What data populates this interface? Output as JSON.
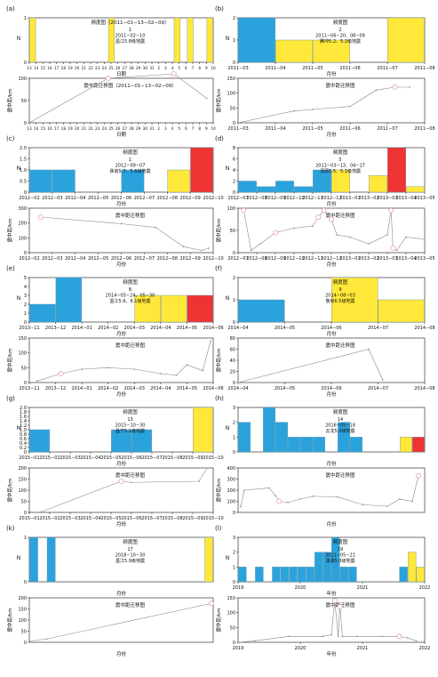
{
  "chart_data": [
    {
      "id": "a",
      "panel_label": "(a)",
      "type": "bar",
      "title": "频度图（2011−01−13−02−09）",
      "annotation": [
        "1",
        "2011−02−10",
        "盈江5.8级地震"
      ],
      "xlabel": "日期",
      "ylabel": "N",
      "categories": [
        "13",
        "14",
        "15",
        "16",
        "17",
        "18",
        "19",
        "20",
        "21",
        "22",
        "23",
        "24",
        "25",
        "26",
        "27",
        "28",
        "29",
        "30",
        "31",
        "2",
        "3",
        "4",
        "5",
        "6",
        "7",
        "8",
        "9",
        "10"
      ],
      "bar_values": [
        1,
        0,
        0,
        0,
        0,
        0,
        0,
        0,
        0,
        0,
        0,
        0,
        1,
        0,
        0,
        0,
        0,
        0,
        0,
        0,
        0,
        0,
        1,
        0,
        1,
        0,
        0,
        1
      ],
      "bar_colors": [
        "#ffe83a",
        "#ffe83a",
        "#ffe83a",
        "#ffe83a",
        "#ffe83a",
        "#ffe83a",
        "#ffe83a",
        "#ffe83a",
        "#ffe83a",
        "#ffe83a",
        "#ffe83a",
        "#ffe83a",
        "#ffe83a",
        "#ffe83a",
        "#ffe83a",
        "#ffe83a",
        "#ffe83a",
        "#ffe83a",
        "#ffe83a",
        "#ffe83a",
        "#ffe83a",
        "#ffe83a",
        "#ffe83a",
        "#ffe83a",
        "#ffe83a",
        "#ffe83a",
        "#ffe83a",
        "#ffe83a"
      ],
      "ylim": [
        0,
        1
      ],
      "yticks": [
        "0",
        "1"
      ],
      "mig_title": "震中距迁移图（2011−01−13−02−09）",
      "mig_ylabel": "震中距/km",
      "mig_ylim": [
        0,
        100
      ],
      "mig_yticks": [
        "0",
        "50",
        "100"
      ],
      "mig_points": [
        [
          0,
          0
        ],
        [
          12,
          100
        ],
        [
          22,
          110
        ],
        [
          27,
          55
        ]
      ],
      "mig_circles": [
        12,
        22
      ]
    },
    {
      "id": "b",
      "panel_label": "(b)",
      "type": "bar",
      "title": "频度图",
      "annotation": [
        "2",
        "2011−06−20、08−09",
        "腾冲5.2、5.2级地震"
      ],
      "xlabel": "月份",
      "ylabel": "N",
      "categories": [
        "2011−03",
        "2011−04",
        "2011−05",
        "2011−06",
        "2011−07",
        "2011−08"
      ],
      "bar_values": [
        2,
        1,
        1,
        0,
        2
      ],
      "bar_colors": [
        "#2aa3dd",
        "#ffe83a",
        "#ffe83a",
        "#ffe83a",
        "#ffe83a"
      ],
      "ylim": [
        0,
        2
      ],
      "yticks": [
        "0",
        "1",
        "2"
      ],
      "mig_title": "震中距迁移图",
      "mig_ylabel": "震中距/km",
      "mig_ylim": [
        0,
        150
      ],
      "mig_yticks": [
        "0",
        "50",
        "100",
        "150"
      ],
      "mig_points": [
        [
          0,
          0
        ],
        [
          1.5,
          40
        ],
        [
          2,
          45
        ],
        [
          3,
          55
        ],
        [
          3.7,
          110
        ],
        [
          4.2,
          120
        ],
        [
          4.6,
          120
        ]
      ],
      "mig_circles": [
        4.2
      ]
    },
    {
      "id": "c",
      "panel_label": "(c)",
      "type": "bar",
      "title": "频度图",
      "annotation": [
        "1",
        "2012−09−07",
        "彝良5.7、5.6级地震"
      ],
      "xlabel": "月份",
      "ylabel": "N",
      "categories": [
        "2012−02",
        "2012−03",
        "2012−04",
        "2012−05",
        "2012−06",
        "2012−07",
        "2012−08",
        "2012−09",
        "2012−10"
      ],
      "bar_values": [
        1,
        1,
        0,
        0,
        1,
        0,
        1,
        2
      ],
      "bar_colors": [
        "#2aa3dd",
        "#2aa3dd",
        "#2aa3dd",
        "#2aa3dd",
        "#2aa3dd",
        "#ffe83a",
        "#ffe83a",
        "#ee3333"
      ],
      "ylim": [
        0,
        2
      ],
      "yticks": [
        "0",
        "0.5",
        "1.0",
        "1.5",
        "2.0"
      ],
      "mig_title": "震中距迁移图",
      "mig_ylabel": "震中距/km",
      "mig_ylim": [
        0,
        300
      ],
      "mig_yticks": [
        "0",
        "100",
        "200",
        "300"
      ],
      "mig_points": [
        [
          0.5,
          240
        ],
        [
          4,
          195
        ],
        [
          5.5,
          170
        ],
        [
          6.7,
          40
        ],
        [
          7.5,
          15
        ],
        [
          7.8,
          30
        ]
      ],
      "mig_circles": [
        0.5
      ]
    },
    {
      "id": "d",
      "panel_label": "(d)",
      "type": "bar",
      "title": "频度图",
      "annotation": [
        "5",
        "2013−03−13、04−17",
        "洱源5.5、5.1级地震"
      ],
      "xlabel": "月份",
      "ylabel": "N",
      "categories": [
        "2012−07",
        "2012−08",
        "2012−09",
        "2012−10",
        "2012−11",
        "2012−12",
        "2013−01",
        "2013−02",
        "2013−03",
        "2013−04",
        "2013−05"
      ],
      "bar_values": [
        2,
        1,
        2,
        1,
        4,
        4,
        0,
        3,
        8,
        1
      ],
      "bar_colors": [
        "#2aa3dd",
        "#2aa3dd",
        "#2aa3dd",
        "#2aa3dd",
        "#2aa3dd",
        "#ffe83a",
        "#ffe83a",
        "#ffe83a",
        "#ee3333",
        "#ffe83a"
      ],
      "ylim": [
        0,
        8
      ],
      "yticks": [
        "0",
        "2",
        "4",
        "6",
        "8"
      ],
      "mig_title": "震中距迁移图",
      "mig_ylabel": "震中距/km",
      "mig_ylim": [
        0,
        100
      ],
      "mig_yticks": [
        "0",
        "50",
        "100"
      ],
      "mig_points": [
        [
          0.3,
          95
        ],
        [
          0.7,
          5
        ],
        [
          1.2,
          20
        ],
        [
          2,
          45
        ],
        [
          3,
          55
        ],
        [
          4,
          60
        ],
        [
          4.3,
          80
        ],
        [
          4.6,
          95
        ],
        [
          5,
          75
        ],
        [
          5.3,
          40
        ],
        [
          6,
          35
        ],
        [
          7,
          20
        ],
        [
          8,
          40
        ],
        [
          8.2,
          95
        ],
        [
          8.3,
          10
        ],
        [
          8.5,
          5
        ],
        [
          9,
          35
        ],
        [
          10,
          30
        ]
      ],
      "mig_circles": [
        0.3,
        2,
        4.3,
        4.6,
        5,
        8.2,
        8.3
      ]
    },
    {
      "id": "e",
      "panel_label": "(e)",
      "type": "bar",
      "title": "频度图",
      "annotation": [
        "8",
        "2014−05−24、05−30",
        "盈江5.6、6.1级地震"
      ],
      "xlabel": "月份",
      "ylabel": "N",
      "categories": [
        "2013−11",
        "2013−12",
        "2014−01",
        "2014−02",
        "2014−03",
        "2014−04",
        "2014−05",
        "2014−06"
      ],
      "bar_values": [
        2,
        5,
        0,
        0,
        3,
        3,
        3
      ],
      "bar_colors": [
        "#2aa3dd",
        "#2aa3dd",
        "#2aa3dd",
        "#2aa3dd",
        "#ffe83a",
        "#ffe83a",
        "#ee3333"
      ],
      "ylim": [
        0,
        5
      ],
      "yticks": [
        "0",
        "1",
        "2",
        "3",
        "4",
        "5"
      ],
      "mig_title": "震中距迁移图",
      "mig_ylabel": "震中距/km",
      "mig_ylim": [
        0,
        150
      ],
      "mig_yticks": [
        "0",
        "50",
        "100",
        "150"
      ],
      "mig_points": [
        [
          0.3,
          5
        ],
        [
          1.2,
          30
        ],
        [
          2,
          45
        ],
        [
          3,
          50
        ],
        [
          4,
          45
        ],
        [
          5,
          30
        ],
        [
          5.6,
          25
        ],
        [
          6,
          60
        ],
        [
          6.6,
          40
        ],
        [
          6.9,
          140
        ]
      ],
      "mig_circles": [
        1.2
      ]
    },
    {
      "id": "f",
      "panel_label": "(f)",
      "type": "bar",
      "title": "频度图",
      "annotation": [
        "9",
        "2014−08−03",
        "鲁甸6.5级地震"
      ],
      "xlabel": "月份",
      "ylabel": "N",
      "categories": [
        "2014−04",
        "2014−05",
        "2014−06",
        "2014−07",
        "2014−08"
      ],
      "bar_values": [
        1,
        0,
        2,
        1
      ],
      "bar_colors": [
        "#2aa3dd",
        "#2aa3dd",
        "#ffe83a",
        "#ffe83a"
      ],
      "ylim": [
        0,
        2
      ],
      "yticks": [
        "0",
        "1",
        "2"
      ],
      "mig_title": "震中距迁移图",
      "mig_ylabel": "震中距/km",
      "mig_ylim": [
        0,
        80
      ],
      "mig_yticks": [
        "0",
        "20",
        "40",
        "60",
        "80"
      ],
      "mig_points": [
        [
          0,
          0
        ],
        [
          2.8,
          60
        ],
        [
          3.1,
          5
        ]
      ],
      "mig_circles": []
    },
    {
      "id": "g",
      "panel_label": "(g)",
      "type": "bar",
      "title": "频度图",
      "annotation": [
        "13",
        "2015−10−30",
        "昌宁5.1级地震"
      ],
      "xlabel": "月份",
      "ylabel": "N",
      "categories": [
        "2015−01",
        "2015−02",
        "2015−03",
        "2015−04",
        "2015−05",
        "2015−06",
        "2015−07",
        "2015−08",
        "2015−09",
        "2015−10"
      ],
      "bar_values": [
        1,
        0,
        0,
        0,
        1,
        1,
        0,
        0,
        2
      ],
      "bar_colors": [
        "#2aa3dd",
        "#2aa3dd",
        "#2aa3dd",
        "#2aa3dd",
        "#2aa3dd",
        "#2aa3dd",
        "#2aa3dd",
        "#ffe83a",
        "#ffe83a"
      ],
      "ylim": [
        0,
        2
      ],
      "yticks": [
        "0",
        "0.2",
        "0.4",
        "0.6",
        "0.8",
        "1.0",
        "1.2",
        "1.4",
        "1.6",
        "1.8",
        "2.0"
      ],
      "mig_title": "震中距迁移图",
      "mig_ylabel": "震中距/km",
      "mig_ylim": [
        0,
        200
      ],
      "mig_yticks": [
        "0",
        "50",
        "100",
        "150",
        "200"
      ],
      "mig_points": [
        [
          0.5,
          0
        ],
        [
          4.5,
          140
        ],
        [
          5,
          135
        ],
        [
          8.3,
          140
        ],
        [
          8.7,
          200
        ]
      ],
      "mig_circles": [
        4.5
      ]
    },
    {
      "id": "h",
      "panel_label": "(h)",
      "type": "bar",
      "title": "频度图",
      "annotation": [
        "14",
        "2016−05−18",
        "云龙5.0级地震"
      ],
      "xlabel": "月份",
      "ylabel": "N",
      "categories": [],
      "bar_values": [
        2,
        0,
        3,
        2,
        1,
        1,
        1,
        0,
        2,
        1,
        0,
        0,
        0,
        1,
        1
      ],
      "bar_colors": [
        "#2aa3dd",
        "#2aa3dd",
        "#2aa3dd",
        "#2aa3dd",
        "#2aa3dd",
        "#2aa3dd",
        "#2aa3dd",
        "#2aa3dd",
        "#2aa3dd",
        "#2aa3dd",
        "#2aa3dd",
        "#2aa3dd",
        "#2aa3dd",
        "#ffe83a",
        "#ee3333"
      ],
      "ylim": [
        0,
        3
      ],
      "yticks": [
        "0",
        "1",
        "2",
        "3"
      ],
      "mig_title": "震中距迁移图",
      "mig_ylabel": "震中距/km",
      "mig_ylim": [
        0,
        400
      ],
      "mig_yticks": [
        "0",
        "100",
        "200",
        "300",
        "400"
      ],
      "mig_points": [
        [
          0.2,
          50
        ],
        [
          0.5,
          200
        ],
        [
          2.5,
          220
        ],
        [
          3,
          150
        ],
        [
          3.3,
          100
        ],
        [
          4,
          90
        ],
        [
          5,
          120
        ],
        [
          6,
          145
        ],
        [
          8,
          140
        ],
        [
          10,
          70
        ],
        [
          12,
          55
        ],
        [
          13,
          120
        ],
        [
          14,
          100
        ],
        [
          14.5,
          330
        ]
      ],
      "mig_circles": [
        3.3,
        14.5
      ]
    },
    {
      "id": "k",
      "panel_label": "(k)",
      "type": "bar",
      "title": "频度图",
      "annotation": [
        "17",
        "2018−10−30",
        "墨江5.9级地震"
      ],
      "xlabel": "月份",
      "ylabel": "N",
      "categories": [],
      "bar_values": [
        1,
        0,
        1,
        0,
        0,
        0,
        0,
        0,
        0,
        0,
        0,
        0,
        0,
        0,
        0,
        0,
        0,
        0,
        0,
        0,
        1
      ],
      "bar_colors": [
        "#2aa3dd",
        "#2aa3dd",
        "#2aa3dd",
        "#2aa3dd",
        "#2aa3dd",
        "#2aa3dd",
        "#2aa3dd",
        "#2aa3dd",
        "#2aa3dd",
        "#2aa3dd",
        "#2aa3dd",
        "#2aa3dd",
        "#2aa3dd",
        "#2aa3dd",
        "#2aa3dd",
        "#2aa3dd",
        "#2aa3dd",
        "#2aa3dd",
        "#2aa3dd",
        "#2aa3dd",
        "#ffe83a"
      ],
      "ylim": [
        0,
        1
      ],
      "yticks": [
        "0",
        "1"
      ],
      "mig_title": "震中距迁移图",
      "mig_ylabel": "震中距/km",
      "mig_ylim": [
        0,
        200
      ],
      "mig_yticks": [
        "0",
        "50",
        "100",
        "150",
        "200"
      ],
      "mig_points": [
        [
          0,
          5
        ],
        [
          2,
          15
        ],
        [
          20.8,
          175
        ]
      ],
      "mig_circles": [
        20.8
      ]
    },
    {
      "id": "l",
      "panel_label": "(l)",
      "type": "bar",
      "title": "频度图",
      "annotation": [
        "19",
        "2021−05−21",
        "漾濞5.0级地震"
      ],
      "xlabel": "年份",
      "ylabel": "N",
      "categories": [
        "2019",
        "2020",
        "2021",
        "2022"
      ],
      "bar_values": [
        1,
        0,
        1,
        0,
        1,
        1,
        1,
        1,
        1,
        2,
        2,
        3,
        1,
        1,
        0,
        0,
        0,
        0,
        0,
        1,
        2,
        1
      ],
      "bar_colors": [
        "#2aa3dd",
        "#2aa3dd",
        "#2aa3dd",
        "#2aa3dd",
        "#2aa3dd",
        "#2aa3dd",
        "#2aa3dd",
        "#2aa3dd",
        "#2aa3dd",
        "#2aa3dd",
        "#2aa3dd",
        "#2aa3dd",
        "#2aa3dd",
        "#2aa3dd",
        "#2aa3dd",
        "#2aa3dd",
        "#2aa3dd",
        "#2aa3dd",
        "#2aa3dd",
        "#2aa3dd",
        "#ffe83a",
        "#ffe83a"
      ],
      "ylim": [
        0,
        3
      ],
      "yticks": [
        "0",
        "1",
        "2",
        "3"
      ],
      "mig_title": "震中距迁移图",
      "mig_ylabel": "震中距/km",
      "mig_ylim": [
        0,
        150
      ],
      "mig_yticks": [
        "0",
        "50",
        "100",
        "150"
      ],
      "mig_points": [
        [
          0,
          0
        ],
        [
          2,
          5
        ],
        [
          6,
          20
        ],
        [
          10,
          20
        ],
        [
          11,
          25
        ],
        [
          11.4,
          140
        ],
        [
          11.8,
          20
        ],
        [
          12,
          120
        ],
        [
          12.3,
          20
        ],
        [
          14,
          20
        ],
        [
          17,
          20
        ],
        [
          19,
          20
        ],
        [
          20,
          15
        ],
        [
          21,
          5
        ]
      ],
      "mig_circles": [
        11.4,
        12,
        19.5
      ]
    }
  ]
}
